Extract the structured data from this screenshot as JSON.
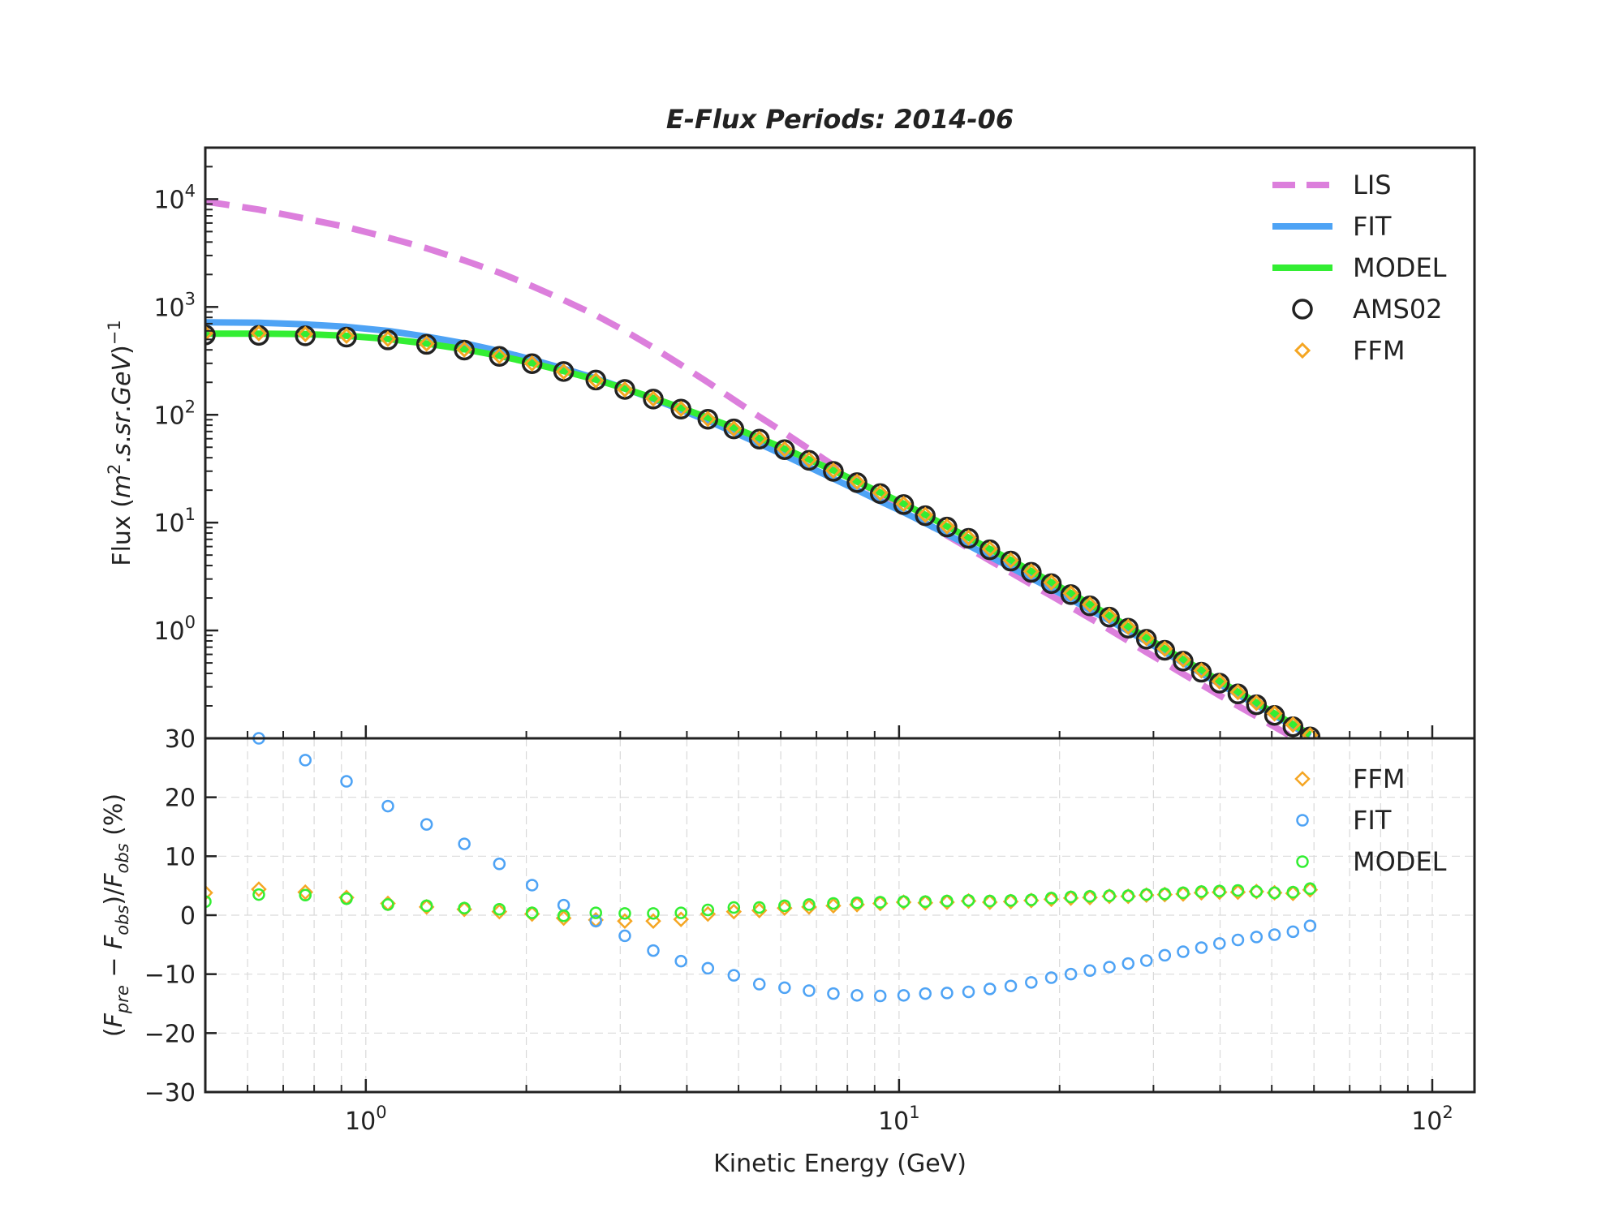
{
  "figure": {
    "title": "E-Flux Periods: 2014-06",
    "xlabel": "Kinetic Energy (GeV)"
  },
  "colors": {
    "LIS": "#dc7fdc",
    "FIT": "#4ea3f5",
    "MODEL": "#33ee33",
    "AMS02": "#222222",
    "FFM": "#f5a623",
    "axes": "#222222"
  },
  "chart_data": [
    {
      "type": "line",
      "panel": "top",
      "title": "E-Flux Periods: 2014-06",
      "ylabel": "Flux (m².s.sr.GeV)⁻¹",
      "xlabel": "",
      "xscale": "log",
      "yscale": "log",
      "xlim": [
        0.5,
        120
      ],
      "ylim": [
        0.1,
        30000
      ],
      "ytick_labels": [
        {
          "base": "10",
          "exp": "4",
          "value": 10000
        },
        {
          "base": "10",
          "exp": "3",
          "value": 1000
        },
        {
          "base": "10",
          "exp": "2",
          "value": 100
        },
        {
          "base": "10",
          "exp": "1",
          "value": 10
        },
        {
          "base": "10",
          "exp": "0",
          "value": 1
        }
      ],
      "legend": {
        "placement": "top-right",
        "entries": [
          "LIS",
          "FIT",
          "MODEL",
          "AMS02",
          "FFM"
        ]
      },
      "x": [
        0.5,
        0.63,
        0.77,
        0.92,
        1.1,
        1.3,
        1.53,
        1.78,
        2.05,
        2.35,
        2.7,
        3.06,
        3.46,
        3.9,
        4.38,
        4.9,
        5.47,
        6.1,
        6.78,
        7.53,
        8.34,
        9.22,
        10.2,
        11.2,
        12.3,
        13.5,
        14.8,
        16.2,
        17.7,
        19.3,
        21.0,
        22.8,
        24.8,
        26.9,
        29.1,
        31.5,
        34.1,
        36.9,
        39.9,
        43.2,
        46.8,
        50.6,
        54.8,
        59.0
      ],
      "series": [
        {
          "name": "LIS",
          "style": "dashed",
          "values": [
            9500,
            8000,
            6600,
            5500,
            4400,
            3500,
            2700,
            2080,
            1560,
            1160,
            840,
            600,
            420,
            290,
            200,
            138,
            96,
            68,
            48,
            34,
            24.5,
            18,
            13.3,
            10.0,
            7.6,
            5.8,
            4.45,
            3.45,
            2.68,
            2.1,
            1.65,
            1.3,
            1.02,
            0.8,
            0.63,
            0.5,
            0.395,
            0.315,
            0.25,
            0.2,
            0.16,
            0.128,
            0.102,
            0.083
          ]
        },
        {
          "name": "FIT",
          "style": "solid",
          "values": [
            720,
            715,
            690,
            655,
            600,
            530,
            460,
            390,
            325,
            268,
            218,
            175,
            140,
            111,
            88,
            69,
            54,
            42,
            32.8,
            25.6,
            20.1,
            15.8,
            12.5,
            9.9,
            7.8,
            6.15,
            4.85,
            3.85,
            3.05,
            2.45,
            1.95,
            1.55,
            1.24,
            0.99,
            0.79,
            0.63,
            0.5,
            0.4,
            0.32,
            0.255,
            0.204,
            0.163,
            0.13,
            0.104
          ]
        },
        {
          "name": "MODEL",
          "style": "solid",
          "values": [
            565,
            565,
            560,
            540,
            505,
            458,
            405,
            352,
            301,
            254,
            212,
            175,
            143,
            116,
            94,
            76,
            61,
            48.5,
            38.5,
            30.5,
            24,
            19,
            15,
            11.8,
            9.25,
            7.25,
            5.7,
            4.5,
            3.55,
            2.8,
            2.22,
            1.75,
            1.38,
            1.09,
            0.86,
            0.68,
            0.54,
            0.43,
            0.34,
            0.27,
            0.215,
            0.17,
            0.135,
            0.108
          ]
        },
        {
          "name": "AMS02",
          "marker": "circle",
          "values": [
            550,
            545,
            540,
            525,
            495,
            450,
            398,
            348,
            298,
            252,
            210,
            172,
            140,
            113,
            91,
            74,
            59.5,
            47.5,
            37.8,
            29.9,
            23.5,
            18.6,
            14.7,
            11.6,
            9.1,
            7.15,
            5.6,
            4.4,
            3.46,
            2.72,
            2.15,
            1.69,
            1.33,
            1.05,
            0.83,
            0.655,
            0.52,
            0.41,
            0.325,
            0.258,
            0.205,
            0.163,
            0.128,
            0.103
          ]
        },
        {
          "name": "FFM",
          "marker": "diamond",
          "values": [
            570,
            570,
            560,
            540,
            505,
            456,
            403,
            350,
            299,
            251,
            208,
            172,
            141,
            113.5,
            91.5,
            74.5,
            60,
            48,
            38.3,
            30.4,
            23.9,
            18.9,
            14.9,
            11.8,
            9.25,
            7.27,
            5.7,
            4.48,
            3.53,
            2.79,
            2.21,
            1.74,
            1.37,
            1.08,
            0.85,
            0.675,
            0.535,
            0.425,
            0.337,
            0.268,
            0.213,
            0.17,
            0.134,
            0.107
          ]
        }
      ]
    },
    {
      "type": "scatter",
      "panel": "bottom",
      "ylabel": "(F_pre − F_obs)/F_obs (%)",
      "xlabel": "Kinetic Energy (GeV)",
      "xscale": "log",
      "yscale": "linear",
      "xlim": [
        0.5,
        120
      ],
      "ylim": [
        -30,
        30
      ],
      "yticks": [
        30,
        20,
        10,
        0,
        -10,
        -20,
        -30
      ],
      "ytick_labels": [
        "30",
        "20",
        "10",
        "0",
        "−10",
        "−20",
        "−30"
      ],
      "xtick_labels": [
        {
          "base": "10",
          "exp": "0",
          "value": 1
        },
        {
          "base": "10",
          "exp": "1",
          "value": 10
        },
        {
          "base": "10",
          "exp": "2",
          "value": 100
        }
      ],
      "grid": true,
      "legend": {
        "placement": "top-right",
        "entries": [
          "FFM",
          "FIT",
          "MODEL"
        ]
      },
      "x": [
        0.5,
        0.63,
        0.77,
        0.92,
        1.1,
        1.3,
        1.53,
        1.78,
        2.05,
        2.35,
        2.7,
        3.06,
        3.46,
        3.9,
        4.38,
        4.9,
        5.47,
        6.1,
        6.78,
        7.53,
        8.34,
        9.22,
        10.2,
        11.2,
        12.3,
        13.5,
        14.8,
        16.2,
        17.7,
        19.3,
        21.0,
        22.8,
        24.8,
        26.9,
        29.1,
        31.5,
        34.1,
        36.9,
        39.9,
        43.2,
        46.8,
        50.6,
        54.8,
        59.0
      ],
      "series": [
        {
          "name": "FFM",
          "marker": "diamond",
          "values": [
            3.8,
            4.4,
            3.9,
            3.0,
            2.0,
            1.4,
            1.0,
            0.6,
            0.2,
            -0.5,
            -0.8,
            -1.0,
            -1.0,
            -0.7,
            0.2,
            0.6,
            0.8,
            1.2,
            1.4,
            1.6,
            1.8,
            2.0,
            2.2,
            2.1,
            2.2,
            2.4,
            2.2,
            2.3,
            2.5,
            2.7,
            2.9,
            3.0,
            3.2,
            3.2,
            3.4,
            3.5,
            3.6,
            3.8,
            3.9,
            3.9,
            4.0,
            3.8,
            3.7,
            4.3
          ]
        },
        {
          "name": "FIT",
          "marker": "circle",
          "values": [
            null,
            30.0,
            26.3,
            22.7,
            18.5,
            15.4,
            12.1,
            8.7,
            5.1,
            1.7,
            -1.0,
            -3.5,
            -6.0,
            -7.8,
            -9.0,
            -10.2,
            -11.7,
            -12.3,
            -12.8,
            -13.3,
            -13.6,
            -13.7,
            -13.6,
            -13.3,
            -13.2,
            -13.0,
            -12.5,
            -12.0,
            -11.4,
            -10.6,
            -10.0,
            -9.4,
            -8.8,
            -8.2,
            -7.7,
            -6.8,
            -6.2,
            -5.5,
            -4.8,
            -4.2,
            -3.7,
            -3.3,
            -2.8,
            -1.8
          ]
        },
        {
          "name": "MODEL",
          "marker": "circle",
          "values": [
            2.3,
            3.5,
            3.4,
            2.8,
            1.8,
            1.6,
            1.2,
            1.0,
            0.4,
            -0.1,
            0.4,
            0.3,
            0.3,
            0.4,
            0.9,
            1.3,
            1.3,
            1.6,
            1.8,
            2.0,
            2.1,
            2.2,
            2.3,
            2.3,
            2.4,
            2.5,
            2.4,
            2.5,
            2.6,
            2.9,
            3.1,
            3.2,
            3.3,
            3.3,
            3.5,
            3.6,
            3.8,
            4.0,
            4.1,
            4.2,
            4.0,
            3.8,
            3.9,
            4.5
          ]
        }
      ]
    }
  ]
}
